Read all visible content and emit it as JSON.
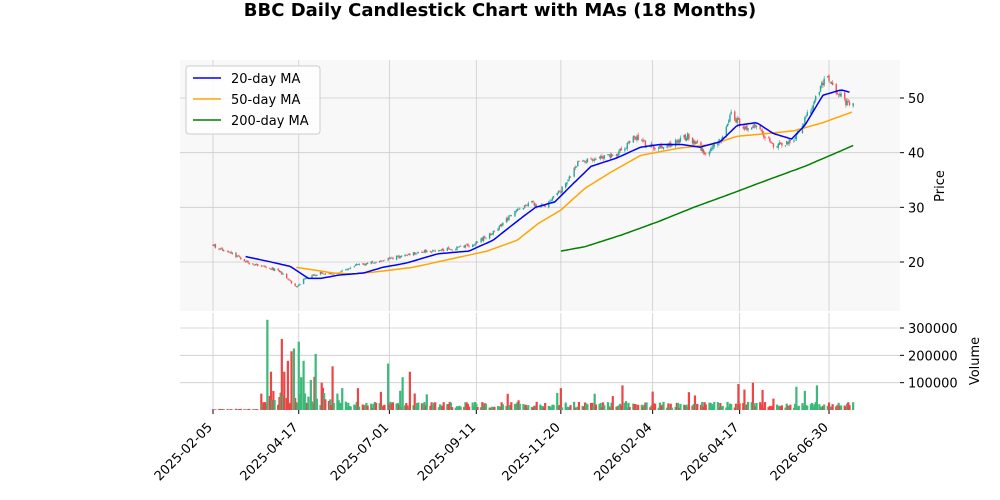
{
  "chart_data": {
    "type": "candlestick",
    "title": "BBC Daily Candlestick Chart with MAs (18 Months)",
    "price_panel": {
      "ylabel": "Price",
      "yticks": [
        20,
        30,
        40,
        50
      ],
      "ylim": [
        10,
        57
      ],
      "grid": true
    },
    "volume_panel": {
      "ylabel": "Volume",
      "yticks": [
        100000,
        200000,
        300000
      ],
      "ytick_labels": [
        "100000",
        "200000",
        "300000"
      ],
      "ylim": [
        0,
        340000
      ],
      "grid": true
    },
    "x_axis": {
      "start": "2025-01-27",
      "end": "2026-07-20",
      "ticks": [
        "2025-02-05",
        "2025-04-17",
        "2025-07-01",
        "2025-09-11",
        "2025-11-20",
        "2026-02-04",
        "2026-04-17",
        "2026-06-30"
      ]
    },
    "legend": {
      "placement": "top-left",
      "entries": [
        {
          "name": "20-day MA",
          "color": "#0000ff"
        },
        {
          "name": "50-day MA",
          "color": "#ffa500"
        },
        {
          "name": "200-day MA",
          "color": "#008000"
        }
      ]
    },
    "colors": {
      "up": "#26a69a",
      "down": "#ef5350",
      "vol_up": "#3cb878",
      "vol_down": "#ee4444"
    },
    "price_anchors": [
      [
        "2025-02-05",
        23.0
      ],
      [
        "2025-02-20",
        21.5
      ],
      [
        "2025-03-10",
        19.5
      ],
      [
        "2025-03-31",
        18.5
      ],
      [
        "2025-04-15",
        15.5
      ],
      [
        "2025-04-22",
        17.0
      ],
      [
        "2025-05-05",
        18.0
      ],
      [
        "2025-05-20",
        18.0
      ],
      [
        "2025-06-05",
        19.5
      ],
      [
        "2025-06-20",
        20.0
      ],
      [
        "2025-07-10",
        21.0
      ],
      [
        "2025-08-01",
        22.0
      ],
      [
        "2025-08-25",
        22.5
      ],
      [
        "2025-09-11",
        23.5
      ],
      [
        "2025-09-25",
        25.5
      ],
      [
        "2025-10-10",
        28.5
      ],
      [
        "2025-10-25",
        31.0
      ],
      [
        "2025-11-05",
        30.0
      ],
      [
        "2025-11-20",
        33.0
      ],
      [
        "2025-12-05",
        38.5
      ],
      [
        "2025-12-20",
        39.0
      ],
      [
        "2026-01-05",
        39.5
      ],
      [
        "2026-01-20",
        43.0
      ],
      [
        "2026-02-04",
        41.0
      ],
      [
        "2026-02-20",
        41.5
      ],
      [
        "2026-03-05",
        43.0
      ],
      [
        "2026-03-20",
        40.0
      ],
      [
        "2026-04-01",
        42.5
      ],
      [
        "2026-04-10",
        47.0
      ],
      [
        "2026-04-20",
        44.5
      ],
      [
        "2026-05-01",
        45.0
      ],
      [
        "2026-05-15",
        41.0
      ],
      [
        "2026-05-30",
        42.0
      ],
      [
        "2026-06-15",
        48.0
      ],
      [
        "2026-06-28",
        54.5
      ],
      [
        "2026-07-07",
        51.0
      ],
      [
        "2026-07-14",
        49.0
      ],
      [
        "2026-07-20",
        48.5
      ]
    ],
    "ma20": [
      [
        "2025-03-04",
        21.0
      ],
      [
        "2025-03-25",
        20.0
      ],
      [
        "2025-04-10",
        19.2
      ],
      [
        "2025-04-25",
        17.0
      ],
      [
        "2025-05-05",
        17.0
      ],
      [
        "2025-05-20",
        17.6
      ],
      [
        "2025-06-10",
        18.0
      ],
      [
        "2025-06-25",
        19.0
      ],
      [
        "2025-07-15",
        19.8
      ],
      [
        "2025-08-10",
        21.5
      ],
      [
        "2025-09-05",
        22.0
      ],
      [
        "2025-09-25",
        24.0
      ],
      [
        "2025-10-15",
        27.5
      ],
      [
        "2025-10-30",
        30.0
      ],
      [
        "2025-11-15",
        31.0
      ],
      [
        "2025-12-01",
        34.5
      ],
      [
        "2025-12-15",
        37.5
      ],
      [
        "2026-01-05",
        39.0
      ],
      [
        "2026-01-25",
        41.0
      ],
      [
        "2026-02-10",
        41.5
      ],
      [
        "2026-02-28",
        41.5
      ],
      [
        "2026-03-15",
        41.0
      ],
      [
        "2026-04-01",
        42.0
      ],
      [
        "2026-04-15",
        45.0
      ],
      [
        "2026-05-01",
        45.5
      ],
      [
        "2026-05-15",
        43.5
      ],
      [
        "2026-05-30",
        42.5
      ],
      [
        "2026-06-10",
        45.0
      ],
      [
        "2026-06-25",
        50.5
      ],
      [
        "2026-07-10",
        51.5
      ],
      [
        "2026-07-18",
        51.0
      ]
    ],
    "ma50": [
      [
        "2025-04-15",
        19.0
      ],
      [
        "2025-05-01",
        18.5
      ],
      [
        "2025-05-15",
        18.0
      ],
      [
        "2025-06-01",
        17.8
      ],
      [
        "2025-06-20",
        18.2
      ],
      [
        "2025-07-20",
        19.0
      ],
      [
        "2025-08-20",
        20.5
      ],
      [
        "2025-09-20",
        22.0
      ],
      [
        "2025-10-15",
        24.0
      ],
      [
        "2025-11-01",
        27.0
      ],
      [
        "2025-11-20",
        29.5
      ],
      [
        "2025-12-10",
        33.5
      ],
      [
        "2026-01-01",
        36.5
      ],
      [
        "2026-01-25",
        39.5
      ],
      [
        "2026-02-25",
        40.8
      ],
      [
        "2026-03-25",
        41.5
      ],
      [
        "2026-04-15",
        43.0
      ],
      [
        "2026-05-10",
        43.5
      ],
      [
        "2026-06-01",
        44.0
      ],
      [
        "2026-06-25",
        45.5
      ],
      [
        "2026-07-20",
        47.5
      ]
    ],
    "ma200": [
      [
        "2025-11-20",
        22.0
      ],
      [
        "2025-12-10",
        22.8
      ],
      [
        "2026-01-10",
        25.0
      ],
      [
        "2026-02-10",
        27.5
      ],
      [
        "2026-03-10",
        30.0
      ],
      [
        "2026-04-10",
        32.5
      ],
      [
        "2026-05-10",
        35.0
      ],
      [
        "2026-06-10",
        37.5
      ],
      [
        "2026-07-20",
        41.3
      ]
    ],
    "volume_spikes": [
      [
        "2025-03-22",
        330000
      ],
      [
        "2025-03-25",
        140000
      ],
      [
        "2025-04-03",
        260000
      ],
      [
        "2025-04-05",
        140000
      ],
      [
        "2025-04-08",
        180000
      ],
      [
        "2025-04-11",
        215000
      ],
      [
        "2025-04-13",
        225000
      ],
      [
        "2025-04-17",
        250000
      ],
      [
        "2025-04-19",
        120000
      ],
      [
        "2025-04-21",
        180000
      ],
      [
        "2025-04-27",
        110000
      ],
      [
        "2025-05-01",
        205000
      ],
      [
        "2025-05-06",
        100000
      ],
      [
        "2025-05-23",
        80000
      ],
      [
        "2025-06-05",
        80000
      ],
      [
        "2025-06-30",
        170000
      ],
      [
        "2025-07-12",
        120000
      ],
      [
        "2025-07-18",
        140000
      ],
      [
        "2025-11-20",
        80000
      ],
      [
        "2026-01-10",
        90000
      ],
      [
        "2026-04-16",
        95000
      ],
      [
        "2026-04-28",
        100000
      ],
      [
        "2026-06-03",
        85000
      ],
      [
        "2026-06-10",
        70000
      ],
      [
        "2026-06-20",
        90000
      ]
    ]
  }
}
